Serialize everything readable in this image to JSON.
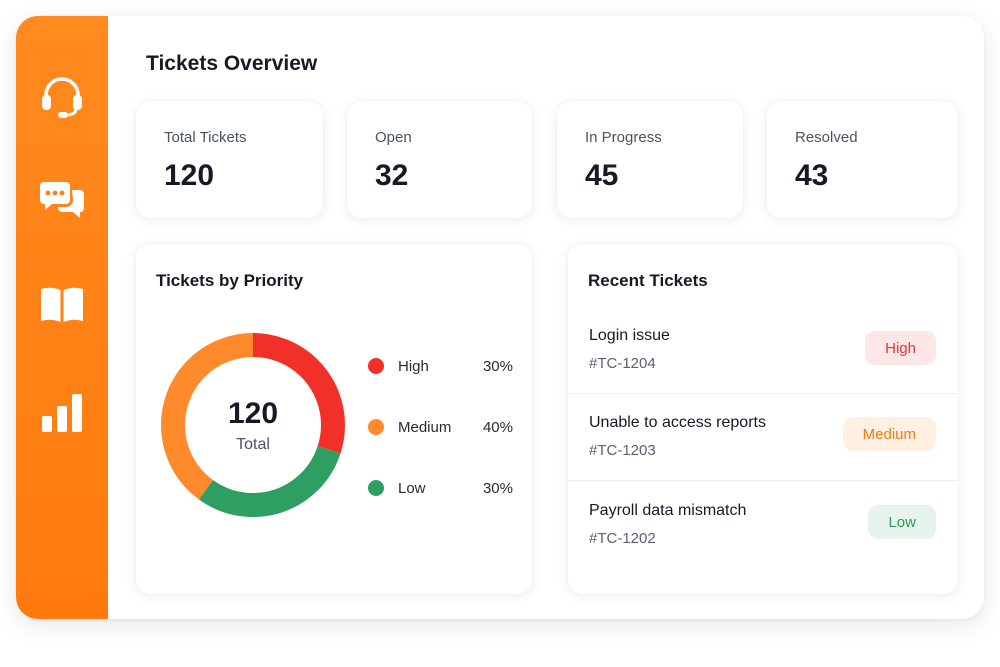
{
  "page": {
    "title": "Tickets Overview"
  },
  "sidebar": {
    "items": [
      {
        "name": "headset-icon"
      },
      {
        "name": "chat-bubbles-icon"
      },
      {
        "name": "book-icon"
      },
      {
        "name": "bar-chart-icon"
      }
    ],
    "accent": "#ff7f14"
  },
  "stats": [
    {
      "label": "Total Tickets",
      "value": "120"
    },
    {
      "label": "Open",
      "value": "32"
    },
    {
      "label": "In Progress",
      "value": "45"
    },
    {
      "label": "Resolved",
      "value": "43"
    }
  ],
  "priority": {
    "title": "Tickets by Priority",
    "center_value": "120",
    "center_label": "Total",
    "legend": [
      {
        "name": "High",
        "percent": "30%",
        "color": "#f2302a"
      },
      {
        "name": "Medium",
        "percent": "40%",
        "color": "#ff8a2c"
      },
      {
        "name": "Low",
        "percent": "30%",
        "color": "#2f9e63"
      }
    ]
  },
  "chart_data": {
    "type": "pie",
    "categories": [
      "High",
      "Medium",
      "Low"
    ],
    "values": [
      30,
      40,
      30
    ],
    "title": "Tickets by Priority",
    "colors": [
      "#f2302a",
      "#ff8a2c",
      "#2f9e63"
    ],
    "legend": "right"
  },
  "recent": {
    "title": "Recent Tickets",
    "tickets": [
      {
        "title": "Login issue",
        "id": "#TC-1204",
        "priority": "High",
        "badge_bg": "#fde6e6",
        "badge_fg": "#e23a36"
      },
      {
        "title": "Unable to access reports",
        "id": "#TC-1203",
        "priority": "Medium",
        "badge_bg": "#fff0e2",
        "badge_fg": "#f07d16"
      },
      {
        "title": "Payroll data mismatch",
        "id": "#TC-1202",
        "priority": "Low",
        "badge_bg": "#e6f4ec",
        "badge_fg": "#2a9a5c"
      }
    ]
  }
}
